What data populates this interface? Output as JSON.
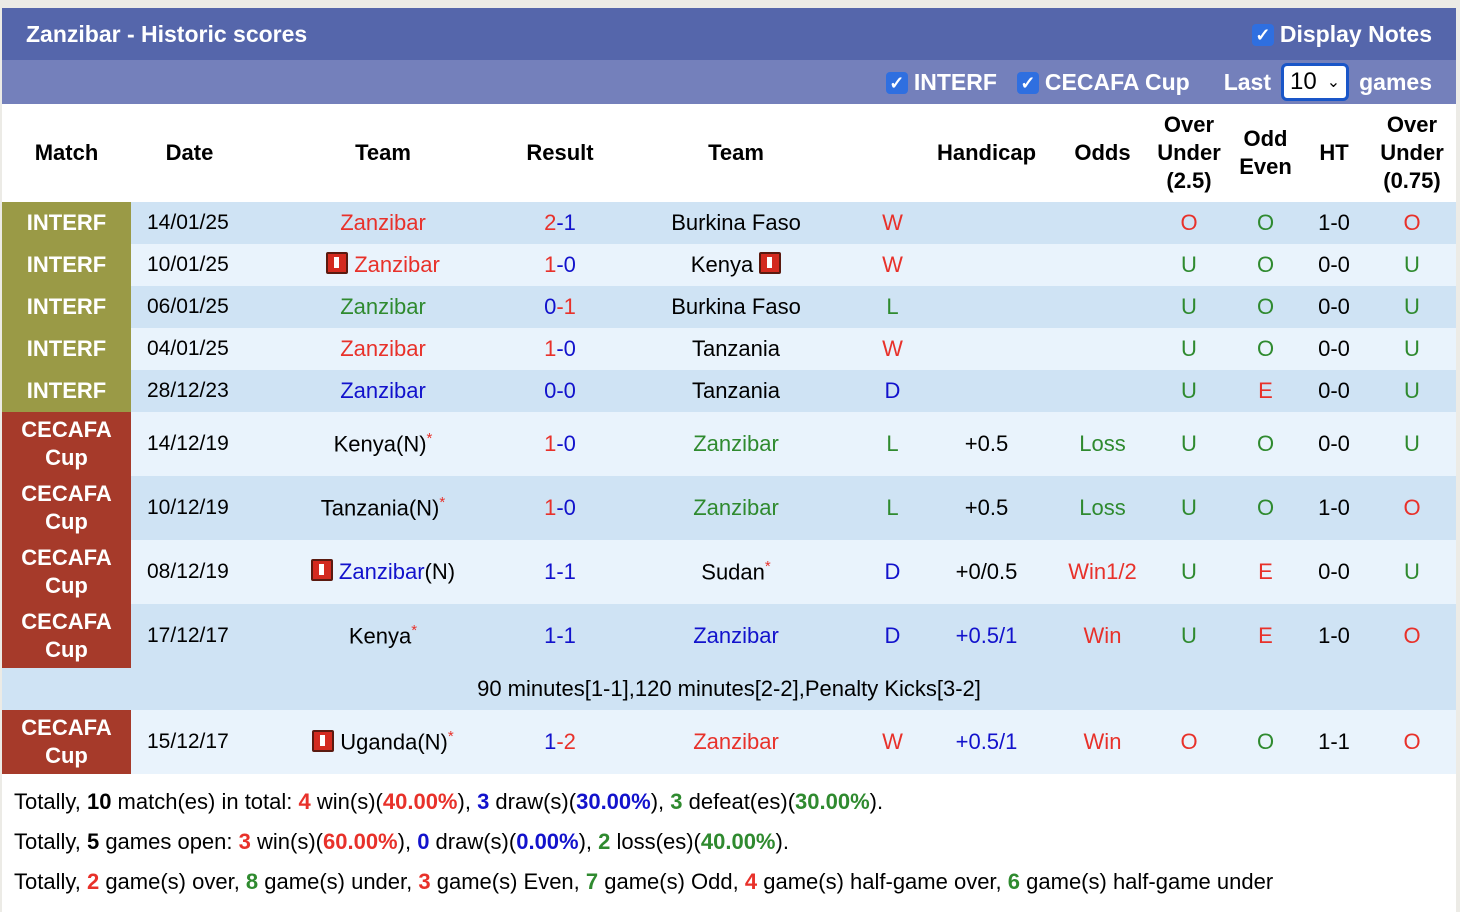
{
  "header": {
    "title": "Zanzibar - Historic scores",
    "display_notes": "Display Notes",
    "filters": [
      "INTERF",
      "CECAFA Cup"
    ],
    "last_label": "Last",
    "last_value": "10",
    "games_label": "games"
  },
  "columns": [
    "Match",
    "Date",
    "Team",
    "Result",
    "Team",
    "",
    "Handicap",
    "Odds",
    "Over Under (2.5)",
    "Odd Even",
    "HT",
    "Over Under (0.75)"
  ],
  "colors": {
    "red": "#e8312a",
    "green": "#2f8a2f",
    "blue": "#1212cc",
    "black": "#000000",
    "interf": "#9a9a46",
    "cecafa": "#a63a2a",
    "row_dark": "#cfe3f4",
    "row_light": "#e9f3fc",
    "title_bar": "#5566ab",
    "sub_bar": "#7480bb"
  },
  "rows": [
    {
      "comp": "INTERF",
      "comp_color": "interf",
      "date": "14/01/25",
      "home": {
        "name": "Zanzibar",
        "color": "red",
        "suffix": "",
        "flag": false,
        "star": false
      },
      "score": {
        "h": "2",
        "a": "1",
        "hc": "red",
        "ac": "blue"
      },
      "away": {
        "name": "Burkina Faso",
        "color": "black",
        "flag": false,
        "star": false
      },
      "res": "W",
      "res_c": "red",
      "hcap": "",
      "hcap_c": "black",
      "odds": "",
      "odds_c": "black",
      "ou": "O",
      "ou_c": "red",
      "oe": "O",
      "oe_c": "green",
      "ht": "1-0",
      "ou2": "O",
      "ou2_c": "red"
    },
    {
      "comp": "INTERF",
      "comp_color": "interf",
      "date": "10/01/25",
      "home": {
        "name": "Zanzibar",
        "color": "red",
        "suffix": "",
        "flag": true,
        "star": false
      },
      "score": {
        "h": "1",
        "a": "0",
        "hc": "red",
        "ac": "blue"
      },
      "away": {
        "name": "Kenya",
        "color": "black",
        "flag": true,
        "star": false
      },
      "res": "W",
      "res_c": "red",
      "hcap": "",
      "hcap_c": "black",
      "odds": "",
      "odds_c": "black",
      "ou": "U",
      "ou_c": "green",
      "oe": "O",
      "oe_c": "green",
      "ht": "0-0",
      "ou2": "U",
      "ou2_c": "green"
    },
    {
      "comp": "INTERF",
      "comp_color": "interf",
      "date": "06/01/25",
      "home": {
        "name": "Zanzibar",
        "color": "green",
        "suffix": "",
        "flag": false,
        "star": false
      },
      "score": {
        "h": "0",
        "a": "1",
        "hc": "blue",
        "ac": "red"
      },
      "away": {
        "name": "Burkina Faso",
        "color": "black",
        "flag": false,
        "star": false
      },
      "res": "L",
      "res_c": "green",
      "hcap": "",
      "hcap_c": "black",
      "odds": "",
      "odds_c": "black",
      "ou": "U",
      "ou_c": "green",
      "oe": "O",
      "oe_c": "green",
      "ht": "0-0",
      "ou2": "U",
      "ou2_c": "green"
    },
    {
      "comp": "INTERF",
      "comp_color": "interf",
      "date": "04/01/25",
      "home": {
        "name": "Zanzibar",
        "color": "red",
        "suffix": "",
        "flag": false,
        "star": false
      },
      "score": {
        "h": "1",
        "a": "0",
        "hc": "red",
        "ac": "blue"
      },
      "away": {
        "name": "Tanzania",
        "color": "black",
        "flag": false,
        "star": false
      },
      "res": "W",
      "res_c": "red",
      "hcap": "",
      "hcap_c": "black",
      "odds": "",
      "odds_c": "black",
      "ou": "U",
      "ou_c": "green",
      "oe": "O",
      "oe_c": "green",
      "ht": "0-0",
      "ou2": "U",
      "ou2_c": "green"
    },
    {
      "comp": "INTERF",
      "comp_color": "interf",
      "date": "28/12/23",
      "home": {
        "name": "Zanzibar",
        "color": "blue",
        "suffix": "",
        "flag": false,
        "star": false
      },
      "score": {
        "h": "0",
        "a": "0",
        "hc": "blue",
        "ac": "blue"
      },
      "away": {
        "name": "Tanzania",
        "color": "black",
        "flag": false,
        "star": false
      },
      "res": "D",
      "res_c": "blue",
      "hcap": "",
      "hcap_c": "black",
      "odds": "",
      "odds_c": "black",
      "ou": "U",
      "ou_c": "green",
      "oe": "E",
      "oe_c": "red",
      "ht": "0-0",
      "ou2": "U",
      "ou2_c": "green"
    },
    {
      "comp": "CECAFA Cup",
      "comp_color": "cecafa",
      "date": "14/12/19",
      "home": {
        "name": "Kenya(N)",
        "color": "black",
        "suffix": "",
        "flag": false,
        "star": true
      },
      "score": {
        "h": "1",
        "a": "0",
        "hc": "red",
        "ac": "blue"
      },
      "away": {
        "name": "Zanzibar",
        "color": "green",
        "flag": false,
        "star": false
      },
      "res": "L",
      "res_c": "green",
      "hcap": "+0.5",
      "hcap_c": "black",
      "odds": "Loss",
      "odds_c": "green",
      "ou": "U",
      "ou_c": "green",
      "oe": "O",
      "oe_c": "green",
      "ht": "0-0",
      "ou2": "U",
      "ou2_c": "green"
    },
    {
      "comp": "CECAFA Cup",
      "comp_color": "cecafa",
      "date": "10/12/19",
      "home": {
        "name": "Tanzania(N)",
        "color": "black",
        "suffix": "",
        "flag": false,
        "star": true
      },
      "score": {
        "h": "1",
        "a": "0",
        "hc": "red",
        "ac": "blue"
      },
      "away": {
        "name": "Zanzibar",
        "color": "green",
        "flag": false,
        "star": false
      },
      "res": "L",
      "res_c": "green",
      "hcap": "+0.5",
      "hcap_c": "black",
      "odds": "Loss",
      "odds_c": "green",
      "ou": "U",
      "ou_c": "green",
      "oe": "O",
      "oe_c": "green",
      "ht": "1-0",
      "ou2": "O",
      "ou2_c": "red"
    },
    {
      "comp": "CECAFA Cup",
      "comp_color": "cecafa",
      "date": "08/12/19",
      "home": {
        "name": "Zanzibar",
        "color": "blue",
        "suffix": "(N)",
        "flag": true,
        "star": false
      },
      "score": {
        "h": "1",
        "a": "1",
        "hc": "blue",
        "ac": "blue"
      },
      "away": {
        "name": "Sudan",
        "color": "black",
        "flag": false,
        "star": true
      },
      "res": "D",
      "res_c": "blue",
      "hcap": "+0/0.5",
      "hcap_c": "black",
      "odds": "Win1/2",
      "odds_c": "red",
      "ou": "U",
      "ou_c": "green",
      "oe": "E",
      "oe_c": "red",
      "ht": "0-0",
      "ou2": "U",
      "ou2_c": "green"
    },
    {
      "comp": "CECAFA Cup",
      "comp_color": "cecafa",
      "date": "17/12/17",
      "home": {
        "name": "Kenya",
        "color": "black",
        "suffix": "",
        "flag": false,
        "star": true
      },
      "score": {
        "h": "1",
        "a": "1",
        "hc": "blue",
        "ac": "blue"
      },
      "away": {
        "name": "Zanzibar",
        "color": "blue",
        "flag": false,
        "star": false
      },
      "res": "D",
      "res_c": "blue",
      "hcap": "+0.5/1",
      "hcap_c": "blue",
      "odds": "Win",
      "odds_c": "red",
      "ou": "U",
      "ou_c": "green",
      "oe": "E",
      "oe_c": "red",
      "ht": "1-0",
      "ou2": "O",
      "ou2_c": "red",
      "note": "90 minutes[1-1],120 minutes[2-2],Penalty Kicks[3-2]"
    },
    {
      "comp": "CECAFA Cup",
      "comp_color": "cecafa",
      "date": "15/12/17",
      "home": {
        "name": "Uganda(N)",
        "color": "black",
        "suffix": "",
        "flag": true,
        "star": true
      },
      "score": {
        "h": "1",
        "a": "2",
        "hc": "blue",
        "ac": "red"
      },
      "away": {
        "name": "Zanzibar",
        "color": "red",
        "flag": false,
        "star": false
      },
      "res": "W",
      "res_c": "red",
      "hcap": "+0.5/1",
      "hcap_c": "blue",
      "odds": "Win",
      "odds_c": "red",
      "ou": "O",
      "ou_c": "red",
      "oe": "O",
      "oe_c": "green",
      "ht": "1-1",
      "ou2": "O",
      "ou2_c": "red"
    }
  ],
  "summary": [
    [
      {
        "t": "Totally, "
      },
      {
        "t": "10",
        "b": true
      },
      {
        "t": " match(es) in total: "
      },
      {
        "t": "4",
        "c": "red"
      },
      {
        "t": " win(s)("
      },
      {
        "t": "40.00%",
        "c": "red"
      },
      {
        "t": "), "
      },
      {
        "t": "3",
        "c": "blue"
      },
      {
        "t": " draw(s)("
      },
      {
        "t": "30.00%",
        "c": "blue"
      },
      {
        "t": "), "
      },
      {
        "t": "3",
        "c": "green"
      },
      {
        "t": " defeat(es)("
      },
      {
        "t": "30.00%",
        "c": "green"
      },
      {
        "t": ")."
      }
    ],
    [
      {
        "t": "Totally, "
      },
      {
        "t": "5",
        "b": true
      },
      {
        "t": " games open: "
      },
      {
        "t": "3",
        "c": "red"
      },
      {
        "t": " win(s)("
      },
      {
        "t": "60.00%",
        "c": "red"
      },
      {
        "t": "), "
      },
      {
        "t": "0",
        "c": "blue"
      },
      {
        "t": " draw(s)("
      },
      {
        "t": "0.00%",
        "c": "blue"
      },
      {
        "t": "), "
      },
      {
        "t": "2",
        "c": "green"
      },
      {
        "t": " loss(es)("
      },
      {
        "t": "40.00%",
        "c": "green"
      },
      {
        "t": ")."
      }
    ],
    [
      {
        "t": "Totally, "
      },
      {
        "t": "2",
        "c": "red"
      },
      {
        "t": " game(s) over, "
      },
      {
        "t": "8",
        "c": "green"
      },
      {
        "t": " game(s) under, "
      },
      {
        "t": "3",
        "c": "red"
      },
      {
        "t": " game(s) Even, "
      },
      {
        "t": "7",
        "c": "green"
      },
      {
        "t": " game(s) Odd, "
      },
      {
        "t": "4",
        "c": "red"
      },
      {
        "t": " game(s) half-game over, "
      },
      {
        "t": "6",
        "c": "green"
      },
      {
        "t": " game(s) half-game under"
      }
    ]
  ]
}
